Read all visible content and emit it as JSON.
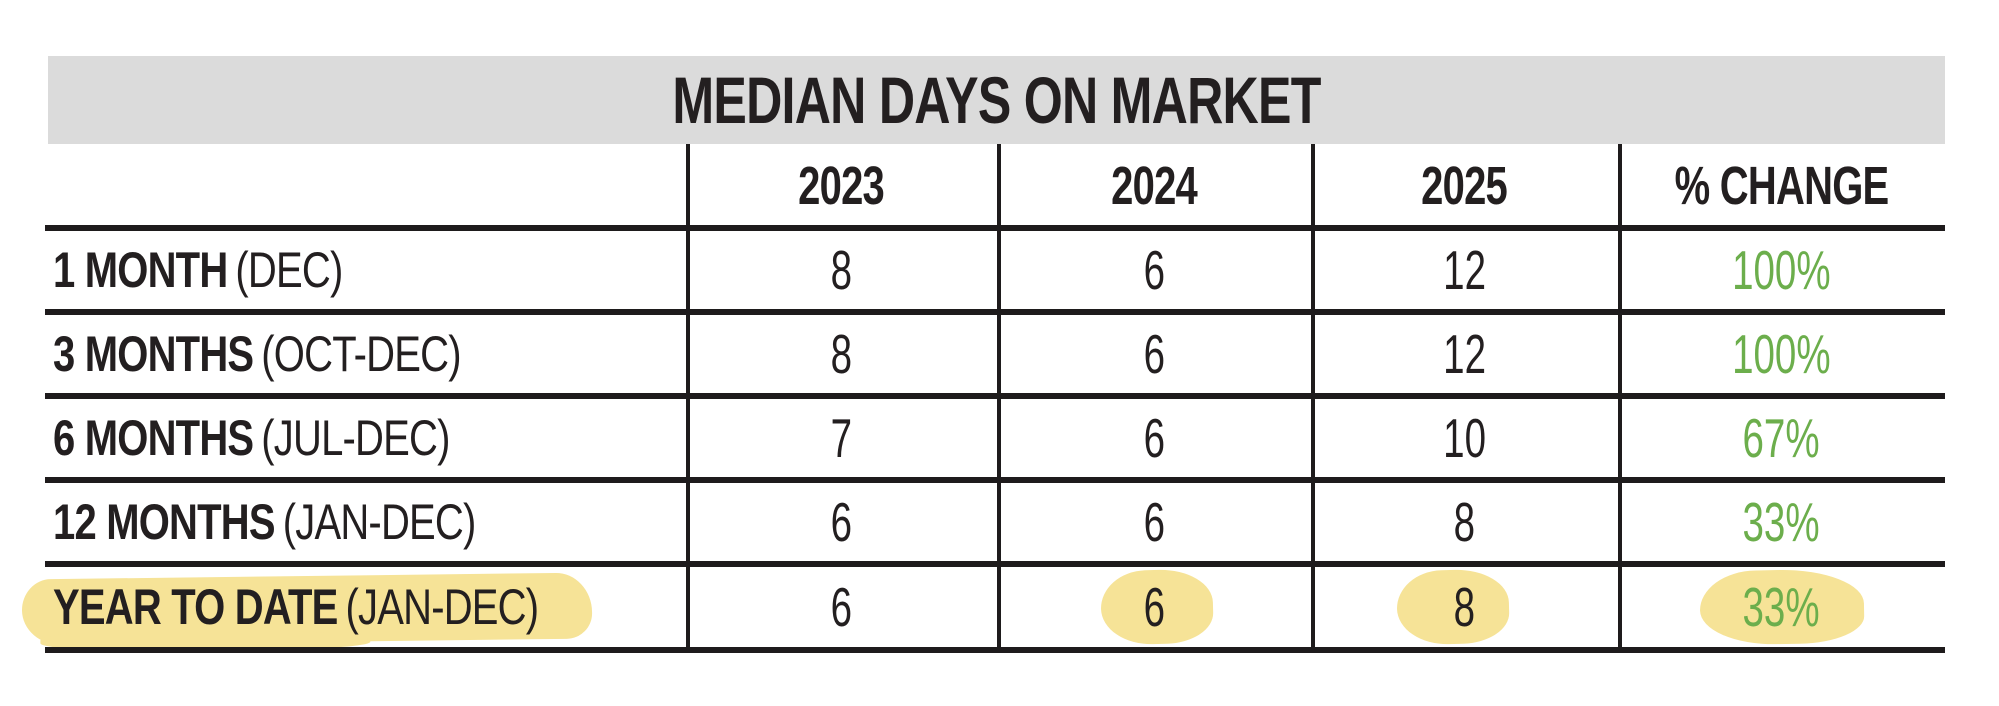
{
  "title_bar": {
    "text": "MEDIAN DAYS ON MARKET",
    "background": "#dbdbdb"
  },
  "colors": {
    "ink": "#231f20",
    "grid_line": "#1e1b1c",
    "pct_change_green": "#6cae4c",
    "highlighter_yellow": "#f6e397",
    "title_bar_gray": "#dbdbdb"
  },
  "chart_data": {
    "type": "table",
    "title": "MEDIAN DAYS ON MARKET",
    "columns": [
      "2023",
      "2024",
      "2025",
      "% CHANGE"
    ],
    "rows": [
      {
        "period": "1 MONTH",
        "period_detail": "(DEC)",
        "y2023": "8",
        "y2024": "6",
        "y2025": "12",
        "pct_change": "100%"
      },
      {
        "period": "3 MONTHS",
        "period_detail": "(OCT-DEC)",
        "y2023": "8",
        "y2024": "6",
        "y2025": "12",
        "pct_change": "100%"
      },
      {
        "period": "6 MONTHS",
        "period_detail": "(JUL-DEC)",
        "y2023": "7",
        "y2024": "6",
        "y2025": "10",
        "pct_change": "67%"
      },
      {
        "period": "12 MONTHS",
        "period_detail": "(JAN-DEC)",
        "y2023": "6",
        "y2024": "6",
        "y2025": "8",
        "pct_change": "33%"
      },
      {
        "period": "YEAR TO DATE",
        "period_detail": "(JAN-DEC)",
        "y2023": "6",
        "y2024": "6",
        "y2025": "8",
        "pct_change": "33%"
      }
    ],
    "layout_hints": {
      "pct_change_text_color": "#6cae4c",
      "last_row_highlighted_cells": [
        "period",
        "y2024",
        "y2025",
        "pct_change"
      ],
      "grid": "horizontal rules between all rows; vertical rules between columns only"
    }
  }
}
